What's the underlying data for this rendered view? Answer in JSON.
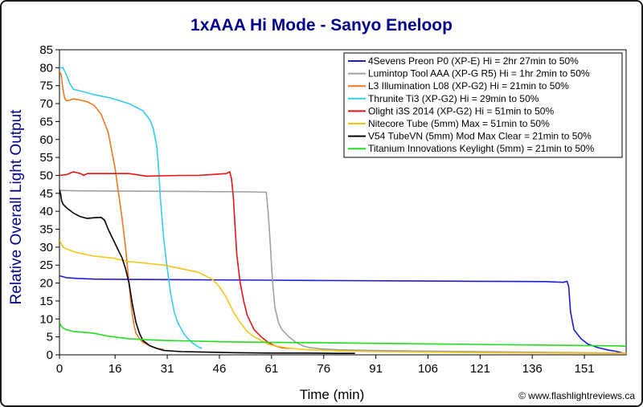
{
  "chart_data": {
    "type": "line",
    "title": "1xAAA Hi Mode - Sanyo Eneloop",
    "xlabel": "Time (min)",
    "ylabel": "Relative Overall Light Output",
    "xlim": [
      0,
      163
    ],
    "ylim": [
      0,
      85
    ],
    "xticks": [
      "0",
      "16",
      "31",
      "46",
      "61",
      "76",
      "91",
      "106",
      "121",
      "136",
      "151"
    ],
    "xtick_values": [
      0,
      16,
      31,
      46,
      61,
      76,
      91,
      106,
      121,
      136,
      151
    ],
    "yticks": [
      "0",
      "5",
      "10",
      "15",
      "20",
      "25",
      "30",
      "35",
      "40",
      "45",
      "50",
      "55",
      "60",
      "65",
      "70",
      "75",
      "80",
      "85"
    ],
    "ytick_values": [
      0,
      5,
      10,
      15,
      20,
      25,
      30,
      35,
      40,
      45,
      50,
      55,
      60,
      65,
      70,
      75,
      80,
      85
    ],
    "legend_position": "top-right",
    "credit": "© www.flashlightreviews.ca",
    "series": [
      {
        "name": "4Sevens Preon P0 (XP-E) Hi = 2hr 27min to 50%",
        "color": "#1c1cd6",
        "x": [
          0,
          2,
          5,
          10,
          20,
          40,
          60,
          80,
          100,
          120,
          140,
          145,
          146,
          146.5,
          147,
          148,
          150,
          152,
          155,
          158,
          160,
          162
        ],
        "y": [
          22,
          21.5,
          21.3,
          21.1,
          21,
          20.9,
          20.8,
          20.7,
          20.6,
          20.5,
          20.4,
          20.2,
          20.5,
          19,
          12,
          7,
          4.5,
          3,
          2,
          1.3,
          1,
          0.5
        ]
      },
      {
        "name": "Lumintop Tool AAA (XP-G R5) Hi = 1hr 2min to 50%",
        "color": "#a0a0a0",
        "x": [
          0,
          5,
          20,
          40,
          55,
          59.5,
          60,
          60.5,
          61,
          61.5,
          62,
          63,
          64,
          66,
          68,
          70,
          72,
          75,
          80,
          90,
          100,
          110,
          120,
          130,
          140,
          150,
          160,
          163
        ],
        "y": [
          45.8,
          45.7,
          45.6,
          45.5,
          45.4,
          45.3,
          40,
          33,
          25,
          18,
          13,
          9,
          7,
          5,
          3.5,
          2.5,
          2,
          1.7,
          1.4,
          1.2,
          1.1,
          1,
          0.9,
          0.8,
          0.7,
          0.6,
          0.5,
          0.5
        ]
      },
      {
        "name": "L3 Illumination L08 (XP-G2) Hi = 21min to 50%",
        "color": "#f07820",
        "x": [
          0,
          0.5,
          1,
          1.5,
          2,
          3,
          4,
          6,
          8,
          10,
          12,
          14,
          16,
          17,
          18,
          19,
          19.5,
          20,
          20.5,
          21,
          21.5,
          22,
          23,
          24,
          26,
          28,
          30
        ],
        "y": [
          79,
          78,
          74,
          71.5,
          70.8,
          71,
          71.3,
          71,
          70.5,
          69.5,
          67,
          62,
          52,
          45,
          38,
          30,
          25,
          20,
          15,
          11,
          8,
          6,
          4.5,
          3.5,
          2.5,
          1.8,
          1.5
        ]
      },
      {
        "name": "Thrunite Ti3 (XP-G2) Hi = 29min to 50%",
        "color": "#33ccee",
        "x": [
          0,
          1,
          2,
          3,
          4,
          6,
          10,
          15,
          20,
          24,
          26,
          27,
          28,
          28.5,
          29,
          29.5,
          30,
          31,
          32,
          33,
          34,
          36,
          38,
          40,
          41
        ],
        "y": [
          80,
          80,
          78,
          75.5,
          74,
          73.5,
          72.5,
          71.5,
          70,
          68,
          65.5,
          63,
          58,
          52,
          44,
          38,
          32,
          24,
          17,
          12,
          9,
          5.5,
          3.5,
          2.2,
          1.8
        ]
      },
      {
        "name": "Olight i3S 2014 (XP-G2) Hi = 51min to 50%",
        "color": "#e81414",
        "x": [
          0,
          2,
          4,
          6,
          7,
          8,
          10,
          15,
          20,
          25,
          35,
          40,
          45,
          48,
          49,
          49.5,
          50,
          50.5,
          51,
          51.5,
          52,
          53,
          54,
          56,
          58,
          60,
          62,
          64,
          66
        ],
        "y": [
          50,
          50.2,
          51,
          50.5,
          50,
          50.5,
          50.5,
          50.5,
          50.5,
          49.8,
          50,
          50,
          50.3,
          50.5,
          51,
          49,
          44,
          36,
          28,
          24,
          20,
          15,
          11,
          7,
          5,
          3.5,
          2.5,
          2,
          1.8
        ]
      },
      {
        "name": "Nitecore Tube (5mm) Max = 51min to 50%",
        "color": "#f5c518",
        "x": [
          0,
          0.5,
          1,
          2,
          5,
          10,
          15,
          20,
          25,
          30,
          35,
          40,
          44,
          46,
          48,
          50,
          52,
          54,
          56,
          58,
          60,
          62,
          65,
          70,
          80,
          90,
          100,
          120,
          140,
          160,
          163
        ],
        "y": [
          32,
          31,
          30,
          29.5,
          28.5,
          27.5,
          27,
          26,
          25.5,
          25,
          24,
          23,
          21,
          19,
          16,
          12,
          9,
          6.5,
          5,
          4,
          3,
          2.5,
          2,
          1.5,
          1.1,
          0.9,
          0.8,
          0.6,
          0.5,
          0.4,
          0.4
        ]
      },
      {
        "name": "V54 TubeVN (5mm) Mod Max Clear = 21min to 50%",
        "color": "#000000",
        "x": [
          0,
          0.3,
          0.6,
          1,
          2,
          4,
          6,
          8,
          10,
          12,
          13,
          14,
          15,
          16,
          17,
          18,
          19,
          20,
          21,
          22,
          23,
          24,
          26,
          28,
          30,
          35,
          40,
          50,
          60,
          70,
          80,
          85
        ],
        "y": [
          46,
          45,
          43,
          42,
          41,
          39.5,
          38.5,
          38,
          38.2,
          38.3,
          37.5,
          35,
          33,
          31,
          29,
          27,
          24,
          20,
          14,
          9,
          6,
          4,
          2.5,
          1.8,
          1.2,
          0.9,
          0.8,
          0.6,
          0.5,
          0.5,
          0.4,
          0.4
        ]
      },
      {
        "name": "Titanium Innovations Keylight (5mm) = 21min to 50%",
        "color": "#22dd22",
        "x": [
          0,
          0.5,
          1,
          2,
          4,
          8,
          10,
          14,
          20,
          25,
          30,
          40,
          50,
          60,
          70,
          80,
          90,
          100,
          110,
          120,
          130,
          140,
          150,
          160,
          163
        ],
        "y": [
          9,
          8,
          7.5,
          7,
          6.5,
          6.2,
          6,
          5.2,
          4.5,
          4.2,
          4,
          3.8,
          3.6,
          3.5,
          3.4,
          3.3,
          3.2,
          3.1,
          3,
          2.9,
          2.8,
          2.7,
          2.6,
          2.5,
          2.4
        ]
      }
    ]
  }
}
